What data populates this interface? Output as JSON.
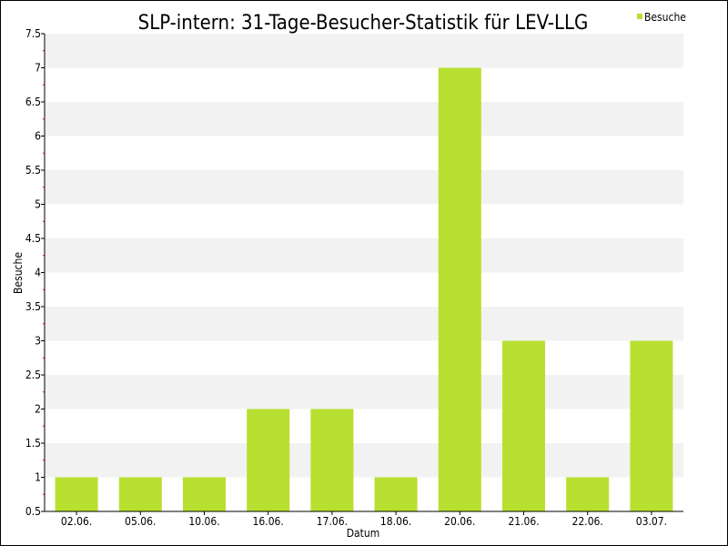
{
  "chart_data": {
    "type": "bar",
    "title": "SLP-intern: 31-Tage-Besucher-Statistik für LEV-LLG",
    "xlabel": "Datum",
    "ylabel": "Besuche",
    "categories": [
      "02.06.",
      "05.06.",
      "10.06.",
      "16.06.",
      "17.06.",
      "18.06.",
      "20.06.",
      "21.06.",
      "22.06.",
      "03.07."
    ],
    "series": [
      {
        "name": "Besuche",
        "values": [
          1,
          1,
          1,
          2,
          2,
          1,
          7,
          3,
          1,
          3
        ]
      }
    ],
    "ylim": [
      0.5,
      7.5
    ],
    "yticks": [
      "0.5",
      "1",
      "1.5",
      "2",
      "2.5",
      "3",
      "3.5",
      "4",
      "4.5",
      "5",
      "5.5",
      "6",
      "6.5",
      "7",
      "7.5"
    ],
    "grid": "horizontal bands",
    "legend_position": "top-right",
    "colors": {
      "bar": "#b8e030",
      "band": "#f2f2f2",
      "minor_tick": "#cc0000",
      "frame": "#000000"
    }
  }
}
